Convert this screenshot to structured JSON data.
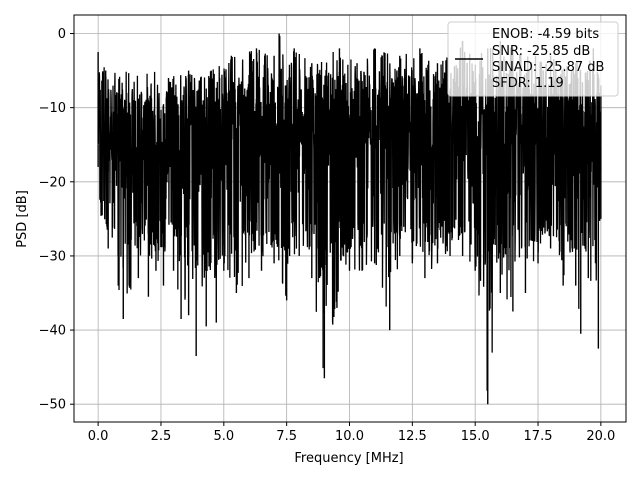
{
  "chart_data": {
    "type": "line",
    "title": "",
    "xlabel": "Frequency [MHz]",
    "ylabel": "PSD [dB]",
    "xlim": [
      -0.96,
      21.0
    ],
    "ylim": [
      -52.4,
      2.5
    ],
    "x_ticks": [
      0.0,
      2.5,
      5.0,
      7.5,
      10.0,
      12.5,
      15.0,
      17.5,
      20.0
    ],
    "x_tick_labels": [
      "0.0",
      "2.5",
      "5.0",
      "7.5",
      "10.0",
      "12.5",
      "15.0",
      "17.5",
      "20.0"
    ],
    "y_ticks": [
      0,
      -10,
      -20,
      -30,
      -40,
      -50
    ],
    "y_tick_labels": [
      "0",
      "−10",
      "−20",
      "−30",
      "−40",
      "−50"
    ],
    "grid": true,
    "legend_placement": "top-right",
    "legend_entries": [
      "ENOB: -4.59 bits",
      "SNR: -25.85 dB",
      "SINAD: -25.87 dB",
      "SFDR: 1.19"
    ],
    "colors": {
      "series": "#000000",
      "grid": "#b0b0b0",
      "legend_edge": "#cccccc"
    },
    "series": [
      {
        "x_range": [
          0.0,
          20.0
        ],
        "envelope_upper": [
          [
            0.0,
            -2.5
          ],
          [
            0.3,
            -5
          ],
          [
            0.8,
            -8
          ],
          [
            1.2,
            -8
          ],
          [
            2.0,
            -9
          ],
          [
            2.8,
            -6
          ],
          [
            3.6,
            -5
          ],
          [
            4.5,
            -5
          ],
          [
            5.3,
            -3
          ],
          [
            6.3,
            -2
          ],
          [
            7.0,
            -3
          ],
          [
            7.2,
            0.0
          ],
          [
            7.8,
            -2
          ],
          [
            8.5,
            -4
          ],
          [
            9.6,
            -2
          ],
          [
            10.3,
            -4
          ],
          [
            11.0,
            -2
          ],
          [
            12.0,
            -3
          ],
          [
            12.8,
            -2
          ],
          [
            13.5,
            -4
          ],
          [
            14.5,
            -1
          ],
          [
            15.5,
            -2
          ],
          [
            16.0,
            -1
          ],
          [
            16.5,
            -2
          ],
          [
            17.4,
            -3
          ],
          [
            18.0,
            -3
          ],
          [
            19.0,
            -4
          ],
          [
            19.7,
            -2
          ],
          [
            20.0,
            -7
          ]
        ],
        "envelope_lower": [
          [
            0.0,
            -18
          ],
          [
            0.4,
            -29
          ],
          [
            0.8,
            -34
          ],
          [
            1.0,
            -38.5
          ],
          [
            1.6,
            -33
          ],
          [
            2.0,
            -35.5
          ],
          [
            2.3,
            -32
          ],
          [
            2.6,
            -34
          ],
          [
            3.0,
            -32
          ],
          [
            3.3,
            -38.5
          ],
          [
            3.6,
            -38
          ],
          [
            3.9,
            -43.5
          ],
          [
            4.3,
            -39.5
          ],
          [
            4.7,
            -39
          ],
          [
            5.0,
            -32
          ],
          [
            5.5,
            -35
          ],
          [
            6.0,
            -33
          ],
          [
            6.5,
            -32
          ],
          [
            7.0,
            -31
          ],
          [
            7.5,
            -36
          ],
          [
            8.0,
            -30
          ],
          [
            8.5,
            -33
          ],
          [
            9.0,
            -46.5
          ],
          [
            9.5,
            -37
          ],
          [
            10.0,
            -32
          ],
          [
            10.5,
            -32
          ],
          [
            11.0,
            -31
          ],
          [
            11.6,
            -40
          ],
          [
            12.0,
            -30
          ],
          [
            12.5,
            -31
          ],
          [
            13.0,
            -33
          ],
          [
            13.5,
            -31
          ],
          [
            14.0,
            -30
          ],
          [
            14.5,
            -30
          ],
          [
            15.0,
            -32
          ],
          [
            15.5,
            -50.0
          ],
          [
            16.0,
            -35
          ],
          [
            16.5,
            -37.5
          ],
          [
            17.0,
            -35
          ],
          [
            17.5,
            -31
          ],
          [
            18.0,
            -29
          ],
          [
            18.5,
            -34
          ],
          [
            19.0,
            -34
          ],
          [
            19.2,
            -40.5
          ],
          [
            19.5,
            -33
          ],
          [
            19.9,
            -42.5
          ],
          [
            20.0,
            -25
          ]
        ],
        "typical_band": [
          -25,
          -5
        ]
      }
    ]
  }
}
